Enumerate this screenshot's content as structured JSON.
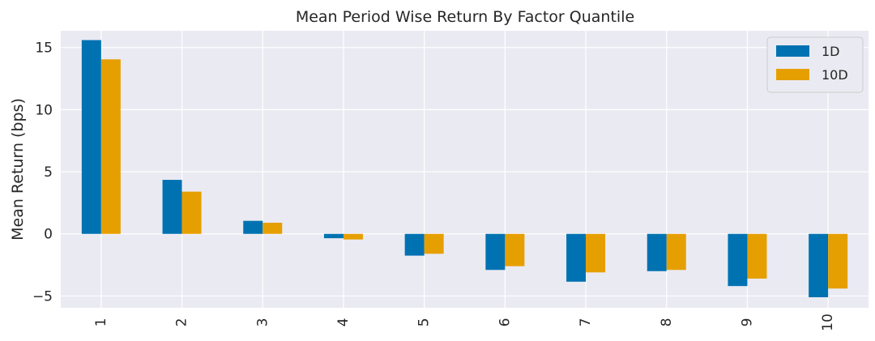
{
  "chart_data": {
    "type": "bar",
    "title": "Mean Period Wise Return By Factor Quantile",
    "xlabel": "",
    "ylabel": "Mean Return (bps)",
    "categories": [
      "1",
      "2",
      "3",
      "4",
      "5",
      "6",
      "7",
      "8",
      "9",
      "10"
    ],
    "series": [
      {
        "name": "1D",
        "color": "#0072b2",
        "values": [
          15.6,
          4.35,
          1.05,
          -0.35,
          -1.75,
          -2.9,
          -3.85,
          -3.0,
          -4.2,
          -5.1
        ]
      },
      {
        "name": "10D",
        "color": "#e69f00",
        "values": [
          14.05,
          3.4,
          0.9,
          -0.45,
          -1.6,
          -2.6,
          -3.1,
          -2.9,
          -3.6,
          -4.4
        ]
      }
    ],
    "ylim": [
      -5.95,
      16.35
    ],
    "yticks": [
      {
        "value": 15,
        "label": "15"
      },
      {
        "value": 10,
        "label": "10"
      },
      {
        "value": 5,
        "label": "5"
      },
      {
        "value": 0,
        "label": "0"
      },
      {
        "value": -5,
        "label": "−5"
      }
    ],
    "grid": true,
    "legend_position": "top-right",
    "background": "#eaeaf2"
  }
}
